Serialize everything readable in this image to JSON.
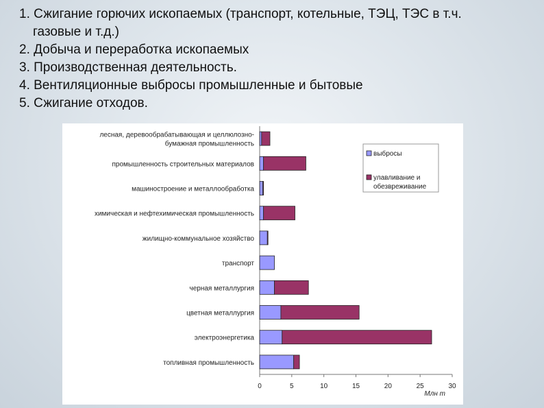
{
  "slide": {
    "items": [
      {
        "line1": "1. Сжигание горючих ископаемых (транспорт, котельные, ТЭЦ,  ТЭС в т.ч.",
        "line2": "газовые и т.д.)"
      },
      {
        "line1": "2. Добыча и переработка ископаемых"
      },
      {
        "line1": "3. Производственная деятельность."
      },
      {
        "line1": "4. Вентиляционные выбросы промышленные и бытовые"
      },
      {
        "line1": "5. Сжигание отходов."
      }
    ]
  },
  "chart_data": {
    "type": "bar",
    "orientation": "horizontal",
    "stacked": true,
    "categories": [
      [
        "лесная, деревообрабатывающая и целлюлозно-",
        "бумажная промышленность"
      ],
      [
        "промышленность строительных материалов"
      ],
      [
        "машиностроение и металлообработка"
      ],
      [
        "химическая и нефтехимическая промышленность"
      ],
      [
        "жилищно-коммунальное хозяйство"
      ],
      [
        "транспорт"
      ],
      [
        "черная металлургия"
      ],
      [
        "цветная металлургия"
      ],
      [
        "электроэнергетика"
      ],
      [
        "топливная промышленность"
      ]
    ],
    "series": [
      {
        "name": "выбросы",
        "color": "#9999ff",
        "values": [
          0.3,
          0.6,
          0.5,
          0.6,
          1.2,
          2.3,
          2.3,
          3.3,
          3.5,
          5.3
        ]
      },
      {
        "name": "улавливание и обезвреживание",
        "color": "#993366",
        "values": [
          1.3,
          6.6,
          0.1,
          4.9,
          0.1,
          0.0,
          5.3,
          12.2,
          23.3,
          0.9
        ]
      }
    ],
    "xlim": [
      0,
      30
    ],
    "xticks": [
      0,
      5,
      10,
      15,
      20,
      25,
      30
    ],
    "xlabel": "Млн   т",
    "legend_position": "top-right",
    "grid": false
  }
}
